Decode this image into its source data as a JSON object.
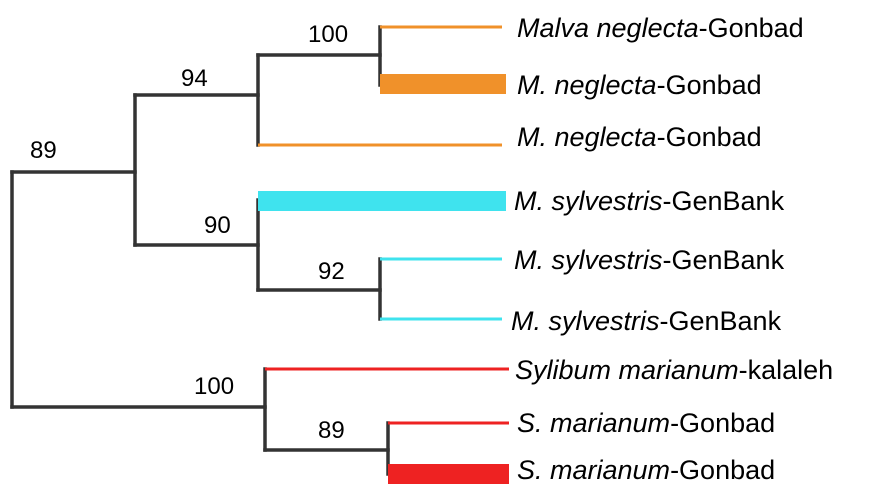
{
  "colors": {
    "branch": "#333333",
    "clade_malva_neglecta": "#f0912a",
    "clade_malva_sylvestris": "#3fe3ee",
    "clade_sylibum": "#ee2222"
  },
  "support_values": [
    {
      "id": "root_upper",
      "label": "89"
    },
    {
      "id": "neglecta_clade",
      "label": "94"
    },
    {
      "id": "neglecta_pair",
      "label": "100"
    },
    {
      "id": "sylvestris_clade",
      "label": "90"
    },
    {
      "id": "sylvestris_pair",
      "label": "92"
    },
    {
      "id": "sylibum_clade",
      "label": "100"
    },
    {
      "id": "marianum_pair",
      "label": "89"
    }
  ],
  "taxa": [
    {
      "genus": "Malva neglecta",
      "suffix": "-Gonbad",
      "color": "#f0912a",
      "emphasis": false
    },
    {
      "genus": "M. neglecta",
      "suffix": "-Gonbad",
      "color": "#f0912a",
      "emphasis": true
    },
    {
      "genus": "M. neglecta",
      "suffix": "-Gonbad",
      "color": "#f0912a",
      "emphasis": false
    },
    {
      "genus": "M. sylvestris",
      "suffix": "-GenBank",
      "color": "#3fe3ee",
      "emphasis": true
    },
    {
      "genus": "M. sylvestris",
      "suffix": "-GenBank",
      "color": "#3fe3ee",
      "emphasis": false
    },
    {
      "genus": "M. sylvestris",
      "suffix": "-GenBank",
      "color": "#3fe3ee",
      "emphasis": false
    },
    {
      "genus": "Sylibum marianum",
      "suffix": "-kalaleh",
      "color": "#ee2222",
      "emphasis": false
    },
    {
      "genus": "S. marianum",
      "suffix": "-Gonbad",
      "color": "#ee2222",
      "emphasis": false
    },
    {
      "genus": "S. marianum",
      "suffix": "-Gonbad",
      "color": "#ee2222",
      "emphasis": true
    }
  ]
}
